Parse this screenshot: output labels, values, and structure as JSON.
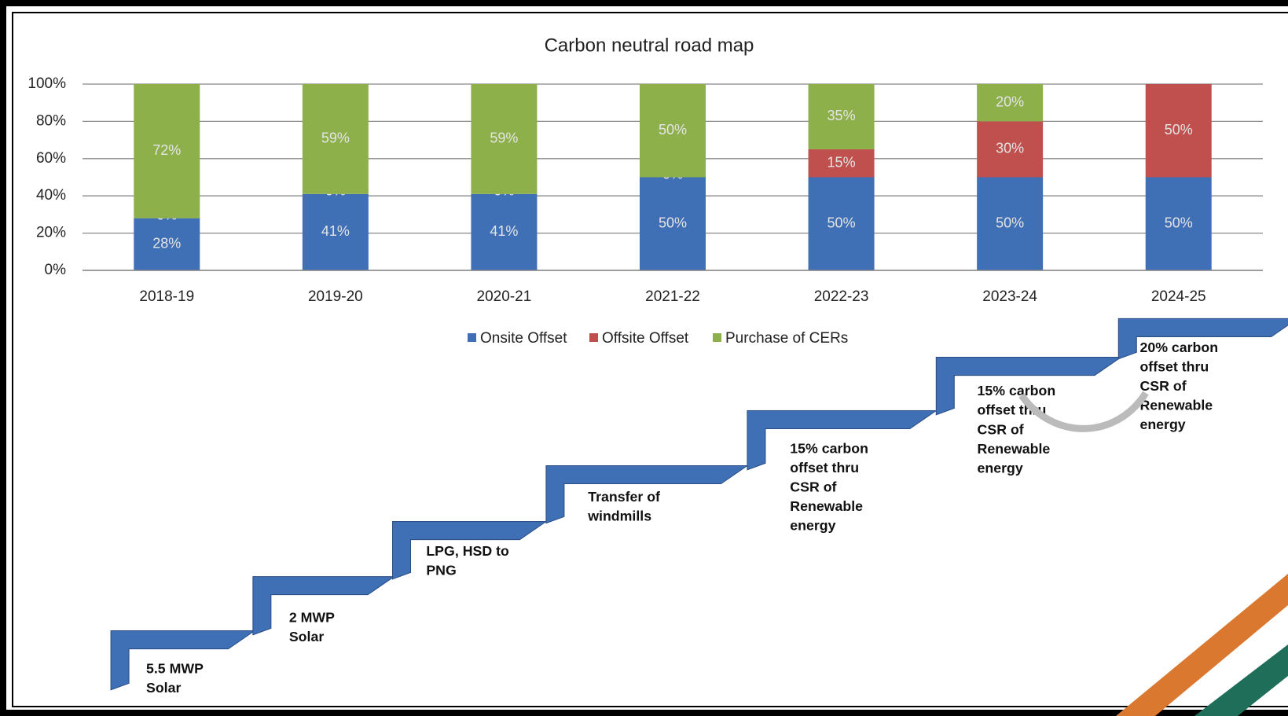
{
  "chart_data": {
    "type": "bar",
    "stacked": true,
    "title": "Carbon neutral road map",
    "categories": [
      "2018-19",
      "2019-20",
      "2020-21",
      "2021-22",
      "2022-23",
      "2023-24",
      "2024-25"
    ],
    "series": [
      {
        "name": "Onsite Offset",
        "color": "#3f6fb5",
        "values": [
          28,
          41,
          41,
          50,
          50,
          50,
          50
        ],
        "value_labels": [
          "28%",
          "41%",
          "41%",
          "50%",
          "50%",
          "50%",
          "50%"
        ]
      },
      {
        "name": "Offsite Offset",
        "color": "#c0504d",
        "values": [
          0,
          0,
          0,
          0,
          15,
          30,
          50
        ],
        "value_labels": [
          "0%",
          "0%",
          "0%",
          "0%",
          "15%",
          "30%",
          "50%"
        ]
      },
      {
        "name": "Purchase of CERs",
        "color": "#8db04a",
        "values": [
          72,
          59,
          59,
          50,
          35,
          20,
          null
        ],
        "value_labels": [
          "72%",
          "59%",
          "59%",
          "50%",
          "35%",
          "20%",
          null
        ]
      }
    ],
    "ylim": [
      0,
      100
    ],
    "yticks": [
      {
        "value": 0,
        "label": "0%"
      },
      {
        "value": 20,
        "label": "20%"
      },
      {
        "value": 40,
        "label": "40%"
      },
      {
        "value": 60,
        "label": "60%"
      },
      {
        "value": 80,
        "label": "80%"
      },
      {
        "value": 100,
        "label": "100%"
      }
    ],
    "grid": true,
    "legend": "bottom"
  },
  "roadmap": {
    "steps": [
      {
        "lines": [
          "5.5 MWP",
          "Solar"
        ]
      },
      {
        "lines": [
          "2 MWP",
          "Solar"
        ]
      },
      {
        "lines": [
          "LPG, HSD to",
          "PNG"
        ]
      },
      {
        "lines": [
          "Transfer of",
          "windmills"
        ]
      },
      {
        "lines": [
          "15% carbon",
          "offset thru",
          "CSR of",
          "Renewable",
          "energy"
        ]
      },
      {
        "lines": [
          "15% carbon",
          "offset thru",
          "CSR of",
          "Renewable",
          "energy"
        ]
      },
      {
        "lines": [
          "20% carbon",
          "offset thru",
          "CSR of",
          "Renewable",
          "energy"
        ]
      }
    ]
  }
}
